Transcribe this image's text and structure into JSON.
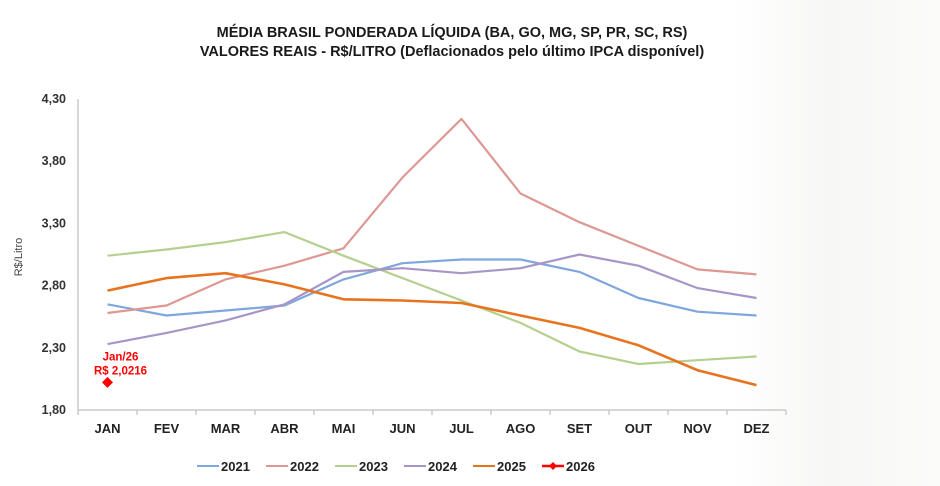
{
  "chart_data": {
    "type": "line",
    "title": "MÉDIA BRASIL PONDERADA LÍQUIDA (BA, GO, MG, SP, PR, SC, RS)",
    "subtitle": "VALORES REAIS - R$/LITRO (Deflacionados pelo último IPCA disponível)",
    "xlabel": "",
    "ylabel": "R$/Litro",
    "ylim": [
      1.8,
      4.3
    ],
    "yticks": [
      "4,30",
      "3,80",
      "3,30",
      "2,80",
      "2,30",
      "1,80"
    ],
    "ytick_values": [
      4.3,
      3.8,
      3.3,
      2.8,
      2.3,
      1.8
    ],
    "categories": [
      "JAN",
      "FEV",
      "MAR",
      "ABR",
      "MAI",
      "JUN",
      "JUL",
      "AGO",
      "SET",
      "OUT",
      "NOV",
      "DEZ"
    ],
    "grid": false,
    "legend_position": "bottom",
    "series": [
      {
        "name": "2021",
        "color": "#7fa6dd",
        "values": [
          2.65,
          2.56,
          2.6,
          2.64,
          2.85,
          2.98,
          3.01,
          3.01,
          2.91,
          2.7,
          2.59,
          2.56
        ]
      },
      {
        "name": "2022",
        "color": "#dd9893",
        "values": [
          2.58,
          2.64,
          2.85,
          2.96,
          3.1,
          3.67,
          4.14,
          3.54,
          3.31,
          3.12,
          2.93,
          2.89
        ]
      },
      {
        "name": "2023",
        "color": "#b5d08e",
        "values": [
          3.04,
          3.09,
          3.15,
          3.23,
          3.04,
          2.86,
          2.68,
          2.5,
          2.27,
          2.17,
          2.2,
          2.23
        ]
      },
      {
        "name": "2024",
        "color": "#a895c8",
        "values": [
          2.33,
          2.42,
          2.52,
          2.65,
          2.91,
          2.94,
          2.9,
          2.94,
          3.05,
          2.96,
          2.78,
          2.7
        ]
      },
      {
        "name": "2025",
        "color": "#e8731f",
        "values": [
          2.76,
          2.86,
          2.9,
          2.81,
          2.69,
          2.68,
          2.66,
          2.56,
          2.46,
          2.32,
          2.12,
          2.0
        ]
      },
      {
        "name": "2026",
        "color": "#ff0000",
        "marker": "diamond",
        "values": [
          2.0216
        ]
      }
    ],
    "annotations": [
      {
        "series": "2026",
        "category": "JAN",
        "lines": [
          "Jan/26",
          "R$ 2,0216"
        ]
      }
    ]
  }
}
